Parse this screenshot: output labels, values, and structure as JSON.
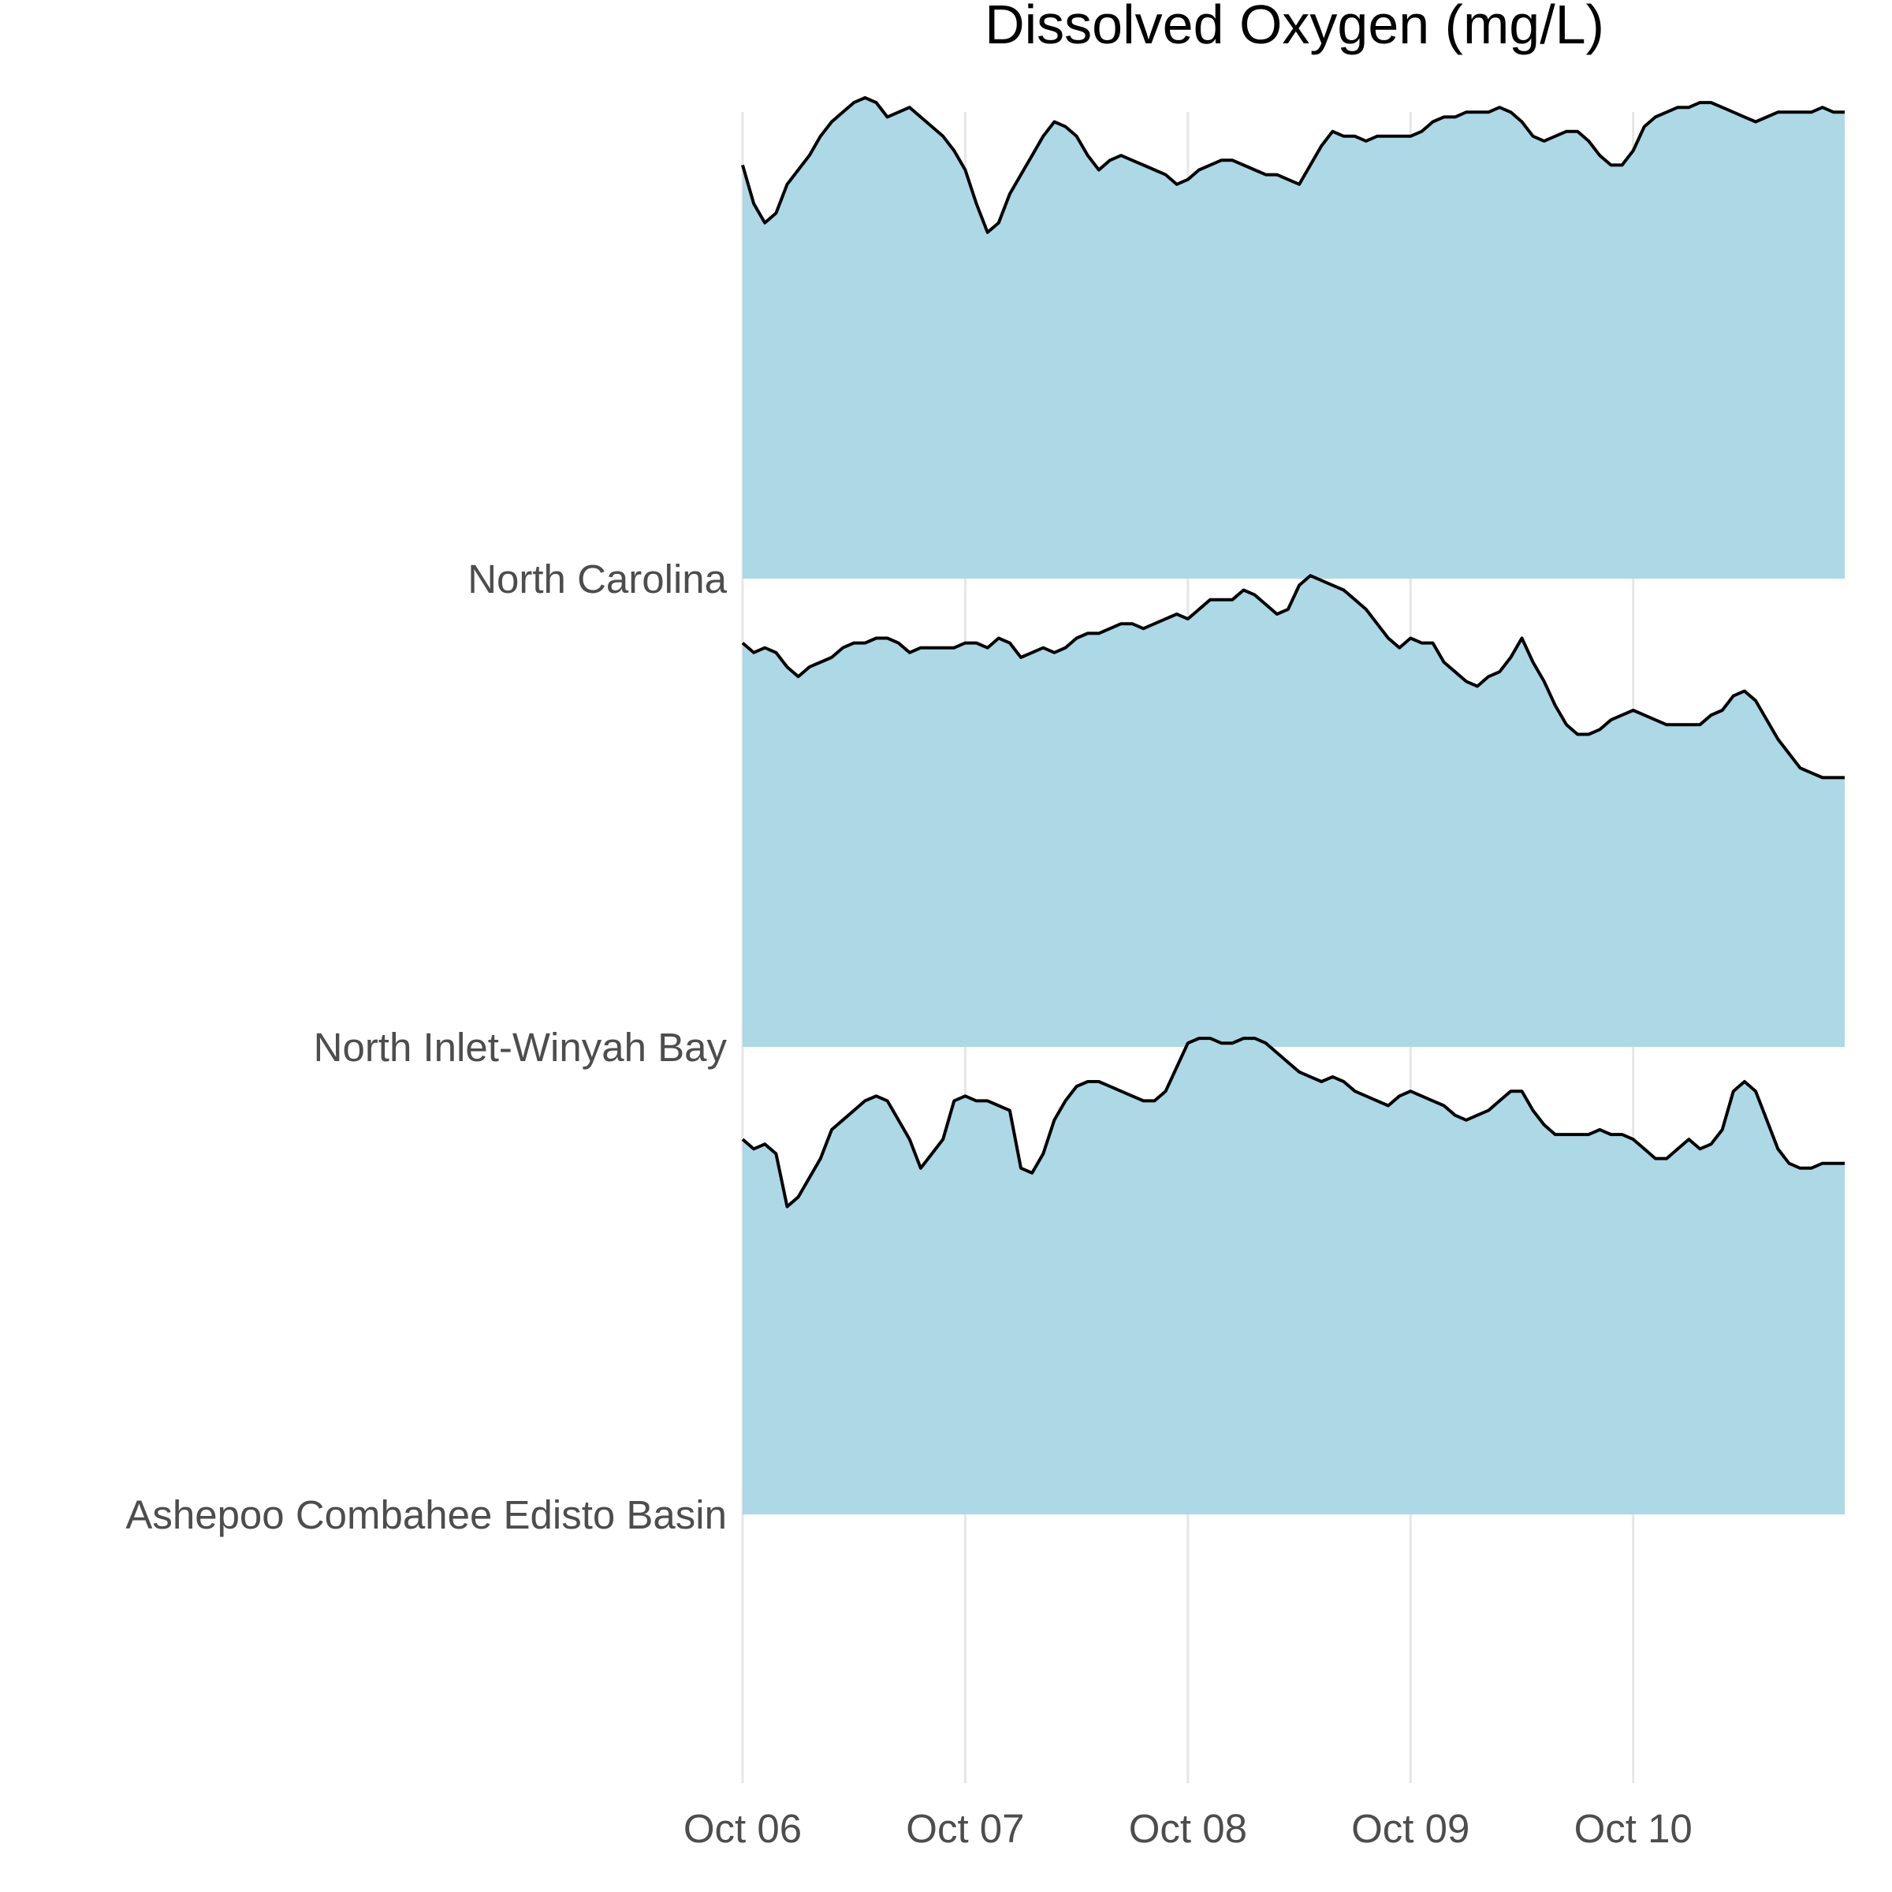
{
  "chart_data": {
    "type": "area",
    "subtype": "ridgeline",
    "title": "Dissolved Oxygen (mg/L)",
    "xlabel": "",
    "ylabel": "",
    "x_tick_labels": [
      "Oct 06",
      "Oct 07",
      "Oct 08",
      "Oct 09",
      "Oct 10"
    ],
    "x_range_days": [
      0,
      4.95
    ],
    "grid": "vertical",
    "fill_color": "#add8e6",
    "line_color": "#000000",
    "series": [
      {
        "name": "North Carolina",
        "points": [
          [
            0,
            0.86
          ],
          [
            0.05,
            0.78
          ],
          [
            0.1,
            0.74
          ],
          [
            0.15,
            0.76
          ],
          [
            0.2,
            0.82
          ],
          [
            0.25,
            0.85
          ],
          [
            0.3,
            0.88
          ],
          [
            0.35,
            0.92
          ],
          [
            0.4,
            0.95
          ],
          [
            0.45,
            0.97
          ],
          [
            0.5,
            0.99
          ],
          [
            0.55,
            1.0
          ],
          [
            0.6,
            0.99
          ],
          [
            0.65,
            0.96
          ],
          [
            0.7,
            0.97
          ],
          [
            0.75,
            0.98
          ],
          [
            0.8,
            0.96
          ],
          [
            0.85,
            0.94
          ],
          [
            0.9,
            0.92
          ],
          [
            0.95,
            0.89
          ],
          [
            1.0,
            0.85
          ],
          [
            1.05,
            0.78
          ],
          [
            1.1,
            0.72
          ],
          [
            1.15,
            0.74
          ],
          [
            1.2,
            0.8
          ],
          [
            1.25,
            0.84
          ],
          [
            1.3,
            0.88
          ],
          [
            1.35,
            0.92
          ],
          [
            1.4,
            0.95
          ],
          [
            1.45,
            0.94
          ],
          [
            1.5,
            0.92
          ],
          [
            1.55,
            0.88
          ],
          [
            1.6,
            0.85
          ],
          [
            1.65,
            0.87
          ],
          [
            1.7,
            0.88
          ],
          [
            1.75,
            0.87
          ],
          [
            1.8,
            0.86
          ],
          [
            1.85,
            0.85
          ],
          [
            1.9,
            0.84
          ],
          [
            1.95,
            0.82
          ],
          [
            2.0,
            0.83
          ],
          [
            2.05,
            0.85
          ],
          [
            2.1,
            0.86
          ],
          [
            2.15,
            0.87
          ],
          [
            2.2,
            0.87
          ],
          [
            2.25,
            0.86
          ],
          [
            2.3,
            0.85
          ],
          [
            2.35,
            0.84
          ],
          [
            2.4,
            0.84
          ],
          [
            2.45,
            0.83
          ],
          [
            2.5,
            0.82
          ],
          [
            2.55,
            0.86
          ],
          [
            2.6,
            0.9
          ],
          [
            2.65,
            0.93
          ],
          [
            2.7,
            0.92
          ],
          [
            2.75,
            0.92
          ],
          [
            2.8,
            0.91
          ],
          [
            2.85,
            0.92
          ],
          [
            2.9,
            0.92
          ],
          [
            2.95,
            0.92
          ],
          [
            3.0,
            0.92
          ],
          [
            3.05,
            0.93
          ],
          [
            3.1,
            0.95
          ],
          [
            3.15,
            0.96
          ],
          [
            3.2,
            0.96
          ],
          [
            3.25,
            0.97
          ],
          [
            3.3,
            0.97
          ],
          [
            3.35,
            0.97
          ],
          [
            3.4,
            0.98
          ],
          [
            3.45,
            0.97
          ],
          [
            3.5,
            0.95
          ],
          [
            3.55,
            0.92
          ],
          [
            3.6,
            0.91
          ],
          [
            3.65,
            0.92
          ],
          [
            3.7,
            0.93
          ],
          [
            3.75,
            0.93
          ],
          [
            3.8,
            0.91
          ],
          [
            3.85,
            0.88
          ],
          [
            3.9,
            0.86
          ],
          [
            3.95,
            0.86
          ],
          [
            4.0,
            0.89
          ],
          [
            4.05,
            0.94
          ],
          [
            4.1,
            0.96
          ],
          [
            4.15,
            0.97
          ],
          [
            4.2,
            0.98
          ],
          [
            4.25,
            0.98
          ],
          [
            4.3,
            0.99
          ],
          [
            4.35,
            0.99
          ],
          [
            4.4,
            0.98
          ],
          [
            4.45,
            0.97
          ],
          [
            4.5,
            0.96
          ],
          [
            4.55,
            0.95
          ],
          [
            4.6,
            0.96
          ],
          [
            4.65,
            0.97
          ],
          [
            4.7,
            0.97
          ],
          [
            4.75,
            0.97
          ],
          [
            4.8,
            0.97
          ],
          [
            4.85,
            0.98
          ],
          [
            4.9,
            0.97
          ],
          [
            4.95,
            0.97
          ]
        ]
      },
      {
        "name": "North Inlet-Winyah Bay",
        "points": [
          [
            0,
            0.84
          ],
          [
            0.05,
            0.82
          ],
          [
            0.1,
            0.83
          ],
          [
            0.15,
            0.82
          ],
          [
            0.2,
            0.79
          ],
          [
            0.25,
            0.77
          ],
          [
            0.3,
            0.79
          ],
          [
            0.35,
            0.8
          ],
          [
            0.4,
            0.81
          ],
          [
            0.45,
            0.83
          ],
          [
            0.5,
            0.84
          ],
          [
            0.55,
            0.84
          ],
          [
            0.6,
            0.85
          ],
          [
            0.65,
            0.85
          ],
          [
            0.7,
            0.84
          ],
          [
            0.75,
            0.82
          ],
          [
            0.8,
            0.83
          ],
          [
            0.85,
            0.83
          ],
          [
            0.9,
            0.83
          ],
          [
            0.95,
            0.83
          ],
          [
            1.0,
            0.84
          ],
          [
            1.05,
            0.84
          ],
          [
            1.1,
            0.83
          ],
          [
            1.15,
            0.85
          ],
          [
            1.2,
            0.84
          ],
          [
            1.25,
            0.81
          ],
          [
            1.3,
            0.82
          ],
          [
            1.35,
            0.83
          ],
          [
            1.4,
            0.82
          ],
          [
            1.45,
            0.83
          ],
          [
            1.5,
            0.85
          ],
          [
            1.55,
            0.86
          ],
          [
            1.6,
            0.86
          ],
          [
            1.65,
            0.87
          ],
          [
            1.7,
            0.88
          ],
          [
            1.75,
            0.88
          ],
          [
            1.8,
            0.87
          ],
          [
            1.85,
            0.88
          ],
          [
            1.9,
            0.89
          ],
          [
            1.95,
            0.9
          ],
          [
            2.0,
            0.89
          ],
          [
            2.05,
            0.91
          ],
          [
            2.1,
            0.93
          ],
          [
            2.15,
            0.93
          ],
          [
            2.2,
            0.93
          ],
          [
            2.25,
            0.95
          ],
          [
            2.3,
            0.94
          ],
          [
            2.35,
            0.92
          ],
          [
            2.4,
            0.9
          ],
          [
            2.45,
            0.91
          ],
          [
            2.5,
            0.96
          ],
          [
            2.55,
            0.98
          ],
          [
            2.6,
            0.97
          ],
          [
            2.65,
            0.96
          ],
          [
            2.7,
            0.95
          ],
          [
            2.75,
            0.93
          ],
          [
            2.8,
            0.91
          ],
          [
            2.85,
            0.88
          ],
          [
            2.9,
            0.85
          ],
          [
            2.95,
            0.83
          ],
          [
            3.0,
            0.85
          ],
          [
            3.05,
            0.84
          ],
          [
            3.1,
            0.84
          ],
          [
            3.15,
            0.8
          ],
          [
            3.2,
            0.78
          ],
          [
            3.25,
            0.76
          ],
          [
            3.3,
            0.75
          ],
          [
            3.35,
            0.77
          ],
          [
            3.4,
            0.78
          ],
          [
            3.45,
            0.81
          ],
          [
            3.5,
            0.85
          ],
          [
            3.55,
            0.8
          ],
          [
            3.6,
            0.76
          ],
          [
            3.65,
            0.71
          ],
          [
            3.7,
            0.67
          ],
          [
            3.75,
            0.65
          ],
          [
            3.8,
            0.65
          ],
          [
            3.85,
            0.66
          ],
          [
            3.9,
            0.68
          ],
          [
            3.95,
            0.69
          ],
          [
            4.0,
            0.7
          ],
          [
            4.05,
            0.69
          ],
          [
            4.1,
            0.68
          ],
          [
            4.15,
            0.67
          ],
          [
            4.2,
            0.67
          ],
          [
            4.25,
            0.67
          ],
          [
            4.3,
            0.67
          ],
          [
            4.35,
            0.69
          ],
          [
            4.4,
            0.7
          ],
          [
            4.45,
            0.73
          ],
          [
            4.5,
            0.74
          ],
          [
            4.55,
            0.72
          ],
          [
            4.6,
            0.68
          ],
          [
            4.65,
            0.64
          ],
          [
            4.7,
            0.61
          ],
          [
            4.75,
            0.58
          ],
          [
            4.8,
            0.57
          ],
          [
            4.85,
            0.56
          ],
          [
            4.9,
            0.56
          ],
          [
            4.95,
            0.56
          ]
        ]
      },
      {
        "name": "Ashepoo Combahee Edisto Basin",
        "points": [
          [
            0,
            0.78
          ],
          [
            0.05,
            0.76
          ],
          [
            0.1,
            0.77
          ],
          [
            0.15,
            0.75
          ],
          [
            0.2,
            0.64
          ],
          [
            0.25,
            0.66
          ],
          [
            0.3,
            0.7
          ],
          [
            0.35,
            0.74
          ],
          [
            0.4,
            0.8
          ],
          [
            0.45,
            0.82
          ],
          [
            0.5,
            0.84
          ],
          [
            0.55,
            0.86
          ],
          [
            0.6,
            0.87
          ],
          [
            0.65,
            0.86
          ],
          [
            0.7,
            0.82
          ],
          [
            0.75,
            0.78
          ],
          [
            0.8,
            0.72
          ],
          [
            0.85,
            0.75
          ],
          [
            0.9,
            0.78
          ],
          [
            0.95,
            0.86
          ],
          [
            1.0,
            0.87
          ],
          [
            1.05,
            0.86
          ],
          [
            1.1,
            0.86
          ],
          [
            1.15,
            0.85
          ],
          [
            1.2,
            0.84
          ],
          [
            1.25,
            0.72
          ],
          [
            1.3,
            0.71
          ],
          [
            1.35,
            0.75
          ],
          [
            1.4,
            0.82
          ],
          [
            1.45,
            0.86
          ],
          [
            1.5,
            0.89
          ],
          [
            1.55,
            0.9
          ],
          [
            1.6,
            0.9
          ],
          [
            1.65,
            0.89
          ],
          [
            1.7,
            0.88
          ],
          [
            1.75,
            0.87
          ],
          [
            1.8,
            0.86
          ],
          [
            1.85,
            0.86
          ],
          [
            1.9,
            0.88
          ],
          [
            1.95,
            0.93
          ],
          [
            2.0,
            0.98
          ],
          [
            2.05,
            0.99
          ],
          [
            2.1,
            0.99
          ],
          [
            2.15,
            0.98
          ],
          [
            2.2,
            0.98
          ],
          [
            2.25,
            0.99
          ],
          [
            2.3,
            0.99
          ],
          [
            2.35,
            0.98
          ],
          [
            2.4,
            0.96
          ],
          [
            2.45,
            0.94
          ],
          [
            2.5,
            0.92
          ],
          [
            2.55,
            0.91
          ],
          [
            2.6,
            0.9
          ],
          [
            2.65,
            0.91
          ],
          [
            2.7,
            0.9
          ],
          [
            2.75,
            0.88
          ],
          [
            2.8,
            0.87
          ],
          [
            2.85,
            0.86
          ],
          [
            2.9,
            0.85
          ],
          [
            2.95,
            0.87
          ],
          [
            3.0,
            0.88
          ],
          [
            3.05,
            0.87
          ],
          [
            3.1,
            0.86
          ],
          [
            3.15,
            0.85
          ],
          [
            3.2,
            0.83
          ],
          [
            3.25,
            0.82
          ],
          [
            3.3,
            0.83
          ],
          [
            3.35,
            0.84
          ],
          [
            3.4,
            0.86
          ],
          [
            3.45,
            0.88
          ],
          [
            3.5,
            0.88
          ],
          [
            3.55,
            0.84
          ],
          [
            3.6,
            0.81
          ],
          [
            3.65,
            0.79
          ],
          [
            3.7,
            0.79
          ],
          [
            3.75,
            0.79
          ],
          [
            3.8,
            0.79
          ],
          [
            3.85,
            0.8
          ],
          [
            3.9,
            0.79
          ],
          [
            3.95,
            0.79
          ],
          [
            4.0,
            0.78
          ],
          [
            4.05,
            0.76
          ],
          [
            4.1,
            0.74
          ],
          [
            4.15,
            0.74
          ],
          [
            4.2,
            0.76
          ],
          [
            4.25,
            0.78
          ],
          [
            4.3,
            0.76
          ],
          [
            4.35,
            0.77
          ],
          [
            4.4,
            0.8
          ],
          [
            4.45,
            0.88
          ],
          [
            4.5,
            0.9
          ],
          [
            4.55,
            0.88
          ],
          [
            4.6,
            0.82
          ],
          [
            4.65,
            0.76
          ],
          [
            4.7,
            0.73
          ],
          [
            4.75,
            0.72
          ],
          [
            4.8,
            0.72
          ],
          [
            4.85,
            0.73
          ],
          [
            4.9,
            0.73
          ],
          [
            4.95,
            0.73
          ]
        ]
      }
    ]
  }
}
